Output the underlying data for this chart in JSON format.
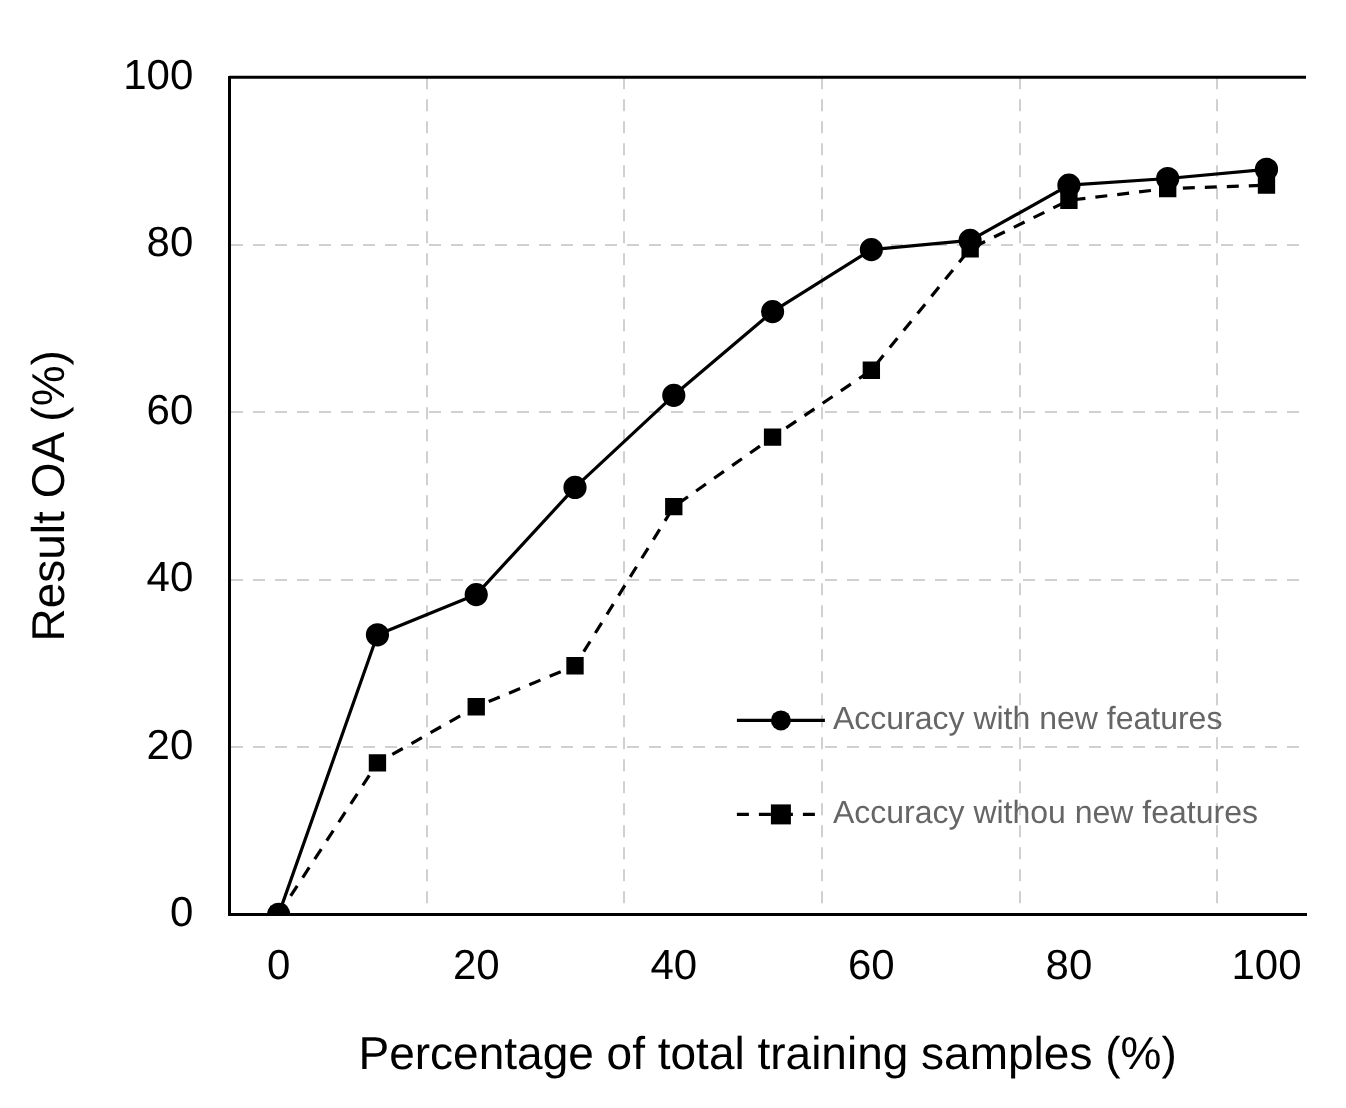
{
  "chart_data": {
    "type": "line",
    "xlabel": "Percentage of total training samples (%)",
    "ylabel": "Result OA (%)",
    "x": [
      0,
      10,
      20,
      30,
      40,
      50,
      60,
      70,
      80,
      90,
      100
    ],
    "series": [
      {
        "name": "Accuracy with new features",
        "color": "#000000",
        "marker": "circle",
        "line_style": "solid",
        "values": [
          0,
          33.4,
          38.2,
          51,
          62,
          72,
          79.4,
          80.5,
          87.1,
          87.9,
          89
        ]
      },
      {
        "name": "Accuracy withou new features",
        "color": "#000000",
        "marker": "square",
        "line_style": "dashed",
        "values": [
          0,
          18.1,
          24.8,
          29.7,
          48.7,
          57,
          65,
          79.5,
          85.3,
          86.7,
          87.1
        ]
      }
    ],
    "xlim": [
      -5,
      104
    ],
    "xticks": [
      0,
      {
        "value": 15,
        "label": null
      },
      20,
      {
        "value": 35,
        "label": null
      },
      40,
      {
        "value": 55,
        "label": null
      },
      60,
      {
        "value": 75,
        "label": null
      },
      80,
      {
        "value": 95,
        "label": null
      },
      100
    ],
    "ylim": [
      0,
      100
    ],
    "yticks": [
      0,
      20,
      40,
      60,
      80,
      100
    ],
    "grid": true,
    "legend": "bottom right"
  }
}
